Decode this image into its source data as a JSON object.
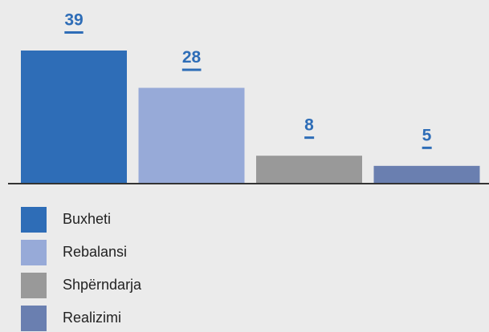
{
  "chart_data": {
    "type": "bar",
    "categories": [
      "Buxheti",
      "Rebalansi",
      "Shpërndarja",
      "Realizimi"
    ],
    "values": [
      39,
      28,
      8,
      5
    ],
    "colors": [
      "#2e6db7",
      "#97aad8",
      "#999999",
      "#6a7fb0"
    ],
    "legend": "bottom"
  }
}
